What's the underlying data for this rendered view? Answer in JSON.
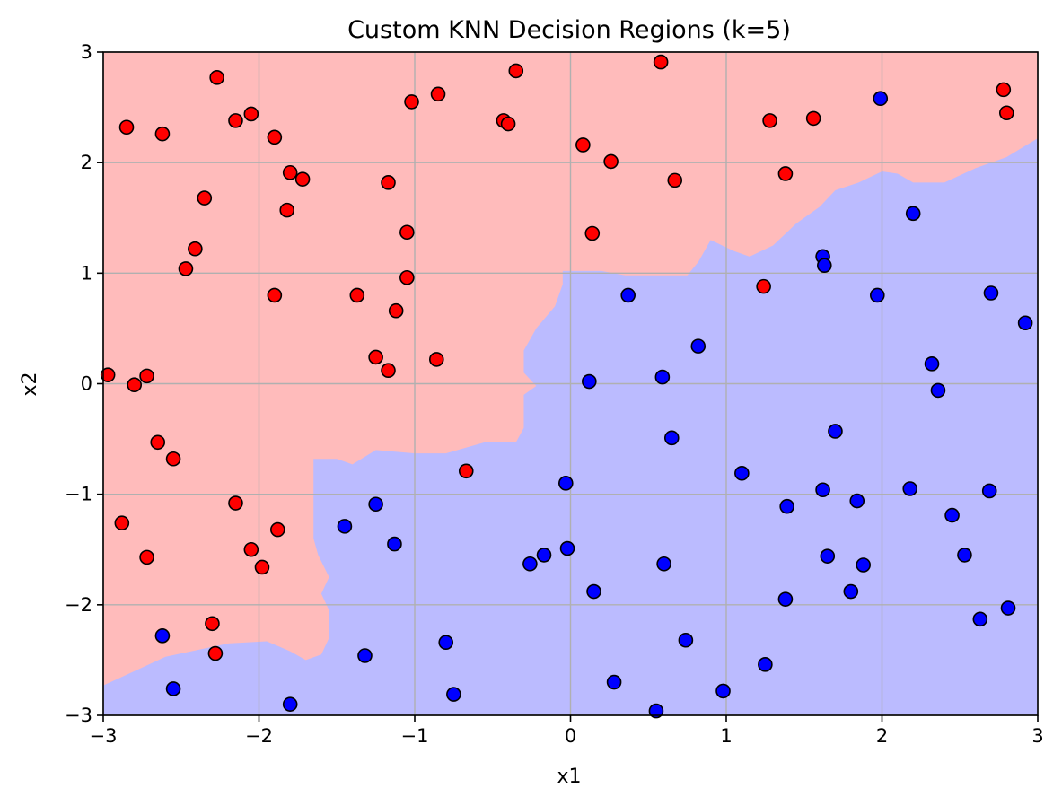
{
  "chart_data": {
    "type": "scatter",
    "title": "Custom KNN Decision Regions (k=5)",
    "xlabel": "x1",
    "ylabel": "x2",
    "xlim": [
      -3,
      3
    ],
    "ylim": [
      -3,
      3
    ],
    "xticks": [
      -3,
      -2,
      -1,
      0,
      1,
      2,
      3
    ],
    "yticks": [
      -3,
      -2,
      -1,
      0,
      1,
      2,
      3
    ],
    "xtick_labels": [
      "−3",
      "−2",
      "−1",
      "0",
      "1",
      "2",
      "3"
    ],
    "ytick_labels": [
      "−3",
      "−2",
      "−1",
      "0",
      "1",
      "2",
      "3"
    ],
    "grid": true,
    "colors": {
      "region_red": "#ffbbbb",
      "region_blue": "#bbbbff",
      "point_red": "#ff0000",
      "point_blue": "#0000ff",
      "point_edge": "#000000",
      "grid": "#b0b0b0"
    },
    "decision_boundary": [
      [
        -3.0,
        -2.73
      ],
      [
        -2.6,
        -2.47
      ],
      [
        -2.2,
        -2.35
      ],
      [
        -1.95,
        -2.33
      ],
      [
        -1.8,
        -2.42
      ],
      [
        -1.7,
        -2.5
      ],
      [
        -1.6,
        -2.45
      ],
      [
        -1.55,
        -2.3
      ],
      [
        -1.55,
        -2.05
      ],
      [
        -1.6,
        -1.9
      ],
      [
        -1.55,
        -1.75
      ],
      [
        -1.62,
        -1.55
      ],
      [
        -1.65,
        -1.4
      ],
      [
        -1.65,
        -0.68
      ],
      [
        -1.5,
        -0.68
      ],
      [
        -1.4,
        -0.73
      ],
      [
        -1.25,
        -0.6
      ],
      [
        -1.0,
        -0.63
      ],
      [
        -0.8,
        -0.63
      ],
      [
        -0.55,
        -0.53
      ],
      [
        -0.35,
        -0.53
      ],
      [
        -0.3,
        -0.4
      ],
      [
        -0.3,
        -0.1
      ],
      [
        -0.22,
        -0.02
      ],
      [
        -0.3,
        0.1
      ],
      [
        -0.3,
        0.3
      ],
      [
        -0.22,
        0.5
      ],
      [
        -0.1,
        0.7
      ],
      [
        -0.05,
        0.9
      ],
      [
        -0.05,
        1.02
      ],
      [
        0.2,
        1.02
      ],
      [
        0.35,
        0.98
      ],
      [
        0.75,
        0.98
      ],
      [
        0.82,
        1.1
      ],
      [
        0.9,
        1.3
      ],
      [
        1.05,
        1.2
      ],
      [
        1.15,
        1.15
      ],
      [
        1.3,
        1.25
      ],
      [
        1.45,
        1.45
      ],
      [
        1.6,
        1.6
      ],
      [
        1.7,
        1.75
      ],
      [
        1.85,
        1.82
      ],
      [
        2.0,
        1.92
      ],
      [
        2.1,
        1.9
      ],
      [
        2.2,
        1.82
      ],
      [
        2.4,
        1.82
      ],
      [
        2.6,
        1.95
      ],
      [
        2.8,
        2.05
      ],
      [
        3.0,
        2.22
      ]
    ],
    "series": [
      {
        "class": "red",
        "points": [
          [
            -2.97,
            0.08
          ],
          [
            -2.8,
            -0.01
          ],
          [
            -2.72,
            0.07
          ],
          [
            -2.85,
            2.32
          ],
          [
            -2.62,
            2.26
          ],
          [
            -2.27,
            2.77
          ],
          [
            -2.15,
            2.38
          ],
          [
            -2.05,
            2.44
          ],
          [
            -1.9,
            2.23
          ],
          [
            -1.8,
            1.91
          ],
          [
            -1.72,
            1.85
          ],
          [
            -1.82,
            1.57
          ],
          [
            -2.35,
            1.68
          ],
          [
            -2.41,
            1.22
          ],
          [
            -2.47,
            1.04
          ],
          [
            -1.9,
            0.8
          ],
          [
            -2.65,
            -0.53
          ],
          [
            -2.55,
            -0.68
          ],
          [
            -2.15,
            -1.08
          ],
          [
            -2.88,
            -1.26
          ],
          [
            -2.72,
            -1.57
          ],
          [
            -2.05,
            -1.5
          ],
          [
            -1.88,
            -1.32
          ],
          [
            -1.98,
            -1.66
          ],
          [
            -2.3,
            -2.17
          ],
          [
            -2.28,
            -2.44
          ],
          [
            -1.17,
            1.82
          ],
          [
            -1.05,
            1.37
          ],
          [
            -1.05,
            0.96
          ],
          [
            -1.02,
            2.55
          ],
          [
            -0.85,
            2.62
          ],
          [
            -0.35,
            2.83
          ],
          [
            -0.43,
            2.38
          ],
          [
            -0.4,
            2.35
          ],
          [
            -1.37,
            0.8
          ],
          [
            -1.12,
            0.66
          ],
          [
            -1.25,
            0.24
          ],
          [
            -1.17,
            0.12
          ],
          [
            -0.86,
            0.22
          ],
          [
            -0.67,
            -0.79
          ],
          [
            0.08,
            2.16
          ],
          [
            0.26,
            2.01
          ],
          [
            0.14,
            1.36
          ],
          [
            0.58,
            2.91
          ],
          [
            0.67,
            1.84
          ],
          [
            1.28,
            2.38
          ],
          [
            1.38,
            1.9
          ],
          [
            1.56,
            2.4
          ],
          [
            1.24,
            0.88
          ],
          [
            2.78,
            2.66
          ],
          [
            2.8,
            2.45
          ]
        ]
      },
      {
        "class": "blue",
        "points": [
          [
            -2.62,
            -2.28
          ],
          [
            -2.55,
            -2.76
          ],
          [
            -1.8,
            -2.9
          ],
          [
            -1.45,
            -1.29
          ],
          [
            -1.25,
            -1.09
          ],
          [
            -1.13,
            -1.45
          ],
          [
            -1.32,
            -2.46
          ],
          [
            -0.8,
            -2.34
          ],
          [
            -0.75,
            -2.81
          ],
          [
            -0.26,
            -1.63
          ],
          [
            -0.17,
            -1.55
          ],
          [
            -0.03,
            -0.9
          ],
          [
            -0.02,
            -1.49
          ],
          [
            0.12,
            0.02
          ],
          [
            0.15,
            -1.88
          ],
          [
            0.28,
            -2.7
          ],
          [
            0.37,
            0.8
          ],
          [
            0.55,
            -2.96
          ],
          [
            0.59,
            0.06
          ],
          [
            0.6,
            -1.63
          ],
          [
            0.65,
            -0.49
          ],
          [
            0.74,
            -2.32
          ],
          [
            0.82,
            0.34
          ],
          [
            0.98,
            -2.78
          ],
          [
            1.1,
            -0.81
          ],
          [
            1.25,
            -2.54
          ],
          [
            1.38,
            -1.95
          ],
          [
            1.39,
            -1.11
          ],
          [
            1.62,
            1.15
          ],
          [
            1.63,
            1.07
          ],
          [
            1.62,
            -0.96
          ],
          [
            1.65,
            -1.56
          ],
          [
            1.7,
            -0.43
          ],
          [
            1.8,
            -1.88
          ],
          [
            1.84,
            -1.06
          ],
          [
            1.88,
            -1.64
          ],
          [
            1.97,
            0.8
          ],
          [
            1.99,
            2.58
          ],
          [
            2.18,
            -0.95
          ],
          [
            2.2,
            1.54
          ],
          [
            2.32,
            0.18
          ],
          [
            2.36,
            -0.06
          ],
          [
            2.45,
            -1.19
          ],
          [
            2.53,
            -1.55
          ],
          [
            2.63,
            -2.13
          ],
          [
            2.69,
            -0.97
          ],
          [
            2.7,
            0.82
          ],
          [
            2.81,
            -2.03
          ],
          [
            2.92,
            0.55
          ]
        ]
      }
    ]
  }
}
